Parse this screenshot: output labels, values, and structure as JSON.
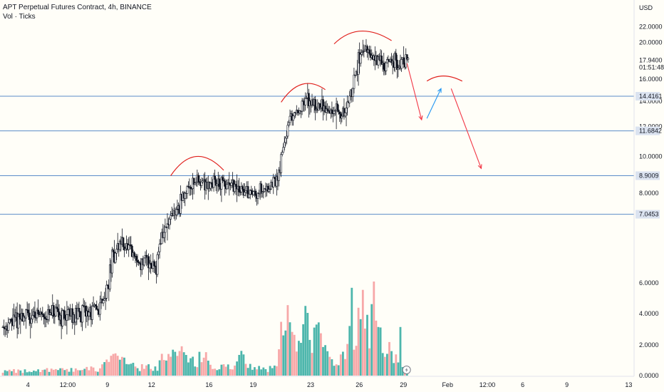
{
  "header": {
    "title": "APT Perpetual Futures Contract, 4h, BINANCE",
    "indicator": "Vol · Ticks"
  },
  "chart_data": {
    "type": "candlestick",
    "currency": "USD",
    "ylim": [
      0,
      23.5
    ],
    "y_ticks": [
      "22.0000",
      "20.0000",
      "16.0000",
      "14.0000",
      "12.0000",
      "10.0000",
      "8.0000",
      "6.0000",
      "4.0000",
      "2.0000",
      "0.0000"
    ],
    "y_tick_values": [
      22,
      20,
      16,
      14,
      12,
      10,
      8,
      6,
      4,
      2,
      0
    ],
    "x_ticks": [
      "4",
      "12:00",
      "9",
      "12",
      "16",
      "19",
      "23",
      "26",
      "29",
      "Feb",
      "12:00",
      "6",
      "9",
      "13"
    ],
    "x_tick_slots": [
      6,
      15,
      24,
      34,
      47,
      57,
      70,
      81,
      91,
      101,
      110,
      118,
      128,
      142
    ],
    "current_price": {
      "value": 17.94,
      "label": "17.9400",
      "countdown": "01:51:48"
    },
    "levels": [
      {
        "value": 14.4161,
        "label": "14.4161"
      },
      {
        "value": 11.6842,
        "label": "11.6842"
      },
      {
        "value": 8.9009,
        "label": "8.9009"
      },
      {
        "value": 7.0453,
        "label": "7.0453"
      }
    ],
    "price_anchors": [
      [
        0,
        3.55
      ],
      [
        4,
        3.75
      ],
      [
        8,
        3.85
      ],
      [
        14,
        3.8
      ],
      [
        20,
        3.9
      ],
      [
        22,
        4.0
      ],
      [
        24,
        4.5
      ],
      [
        25,
        5.4
      ],
      [
        27,
        5.95
      ],
      [
        29,
        5.6
      ],
      [
        31,
        5.25
      ],
      [
        33,
        5.3
      ],
      [
        35,
        5.2
      ],
      [
        36,
        6.1
      ],
      [
        38,
        6.7
      ],
      [
        40,
        7.4
      ],
      [
        42,
        8.3
      ],
      [
        44,
        8.7
      ],
      [
        46,
        8.5
      ],
      [
        48,
        8.6
      ],
      [
        50,
        8.4
      ],
      [
        52,
        8.3
      ],
      [
        55,
        8.1
      ],
      [
        57,
        8.0
      ],
      [
        60,
        8.3
      ],
      [
        62,
        8.5
      ],
      [
        63,
        9.4
      ],
      [
        64,
        11.0
      ],
      [
        65,
        12.2
      ],
      [
        66,
        12.9
      ],
      [
        67,
        13.3
      ],
      [
        68,
        13.5
      ],
      [
        69,
        14.1
      ],
      [
        71,
        13.8
      ],
      [
        73,
        13.4
      ],
      [
        74,
        13.2
      ],
      [
        76,
        13.1
      ],
      [
        77,
        12.8
      ],
      [
        78,
        13.4
      ],
      [
        79,
        14.6
      ],
      [
        80,
        16.3
      ],
      [
        81,
        18.6
      ],
      [
        82,
        18.9
      ],
      [
        84,
        18.1
      ],
      [
        86,
        17.8
      ],
      [
        88,
        17.85
      ],
      [
        90,
        17.6
      ],
      [
        91,
        17.8
      ],
      [
        92,
        17.94
      ]
    ],
    "volume_anchors": [
      [
        0,
        0.3
      ],
      [
        6,
        0.3
      ],
      [
        12,
        0.35
      ],
      [
        18,
        0.4
      ],
      [
        22,
        0.45
      ],
      [
        24,
        0.8
      ],
      [
        25,
        1.3
      ],
      [
        26,
        1.1
      ],
      [
        27,
        0.9
      ],
      [
        29,
        0.6
      ],
      [
        31,
        0.5
      ],
      [
        33,
        0.55
      ],
      [
        35,
        0.4
      ],
      [
        36,
        1.2
      ],
      [
        37,
        1.4
      ],
      [
        38,
        1.0
      ],
      [
        40,
        1.6
      ],
      [
        41,
        1.4
      ],
      [
        42,
        1.1
      ],
      [
        44,
        0.8
      ],
      [
        45,
        1.3
      ],
      [
        46,
        1.5
      ],
      [
        47,
        0.7
      ],
      [
        49,
        0.5
      ],
      [
        51,
        0.55
      ],
      [
        53,
        0.7
      ],
      [
        54,
        1.2
      ],
      [
        55,
        0.9
      ],
      [
        56,
        0.7
      ],
      [
        57,
        0.6
      ],
      [
        58,
        0.45
      ],
      [
        60,
        0.35
      ],
      [
        61,
        0.55
      ],
      [
        62,
        0.8
      ],
      [
        63,
        2.4
      ],
      [
        64,
        2.9
      ],
      [
        65,
        3.3
      ],
      [
        66,
        2.3
      ],
      [
        67,
        1.8
      ],
      [
        68,
        2.7
      ],
      [
        69,
        3.9
      ],
      [
        70,
        2.3
      ],
      [
        71,
        2.8
      ],
      [
        72,
        2.7
      ],
      [
        73,
        1.7
      ],
      [
        74,
        1.2
      ],
      [
        75,
        0.8
      ],
      [
        76,
        0.7
      ],
      [
        77,
        1.4
      ],
      [
        78,
        2.1
      ],
      [
        79,
        2.6
      ],
      [
        80,
        3.4
      ],
      [
        81,
        5.5
      ],
      [
        82,
        3.1
      ],
      [
        83,
        2.4
      ],
      [
        84,
        6.0
      ],
      [
        85,
        3.0
      ],
      [
        86,
        1.8
      ],
      [
        87,
        1.7
      ],
      [
        88,
        1.5
      ],
      [
        89,
        1.0
      ],
      [
        90,
        0.7
      ],
      [
        91,
        0.3
      ],
      [
        92,
        0.3
      ]
    ],
    "volume_highlights": [
      [
        79,
        5.6,
        "up"
      ],
      [
        84,
        6.0,
        "down"
      ],
      [
        69,
        4.0,
        "up"
      ],
      [
        81,
        3.6,
        "up"
      ],
      [
        82,
        3.0,
        "down"
      ],
      [
        65,
        3.4,
        "up"
      ],
      [
        90,
        3.1,
        "up"
      ],
      [
        66,
        2.6,
        "down"
      ],
      [
        72,
        2.7,
        "down"
      ],
      [
        85,
        3.1,
        "up"
      ]
    ],
    "annotations": {
      "arcs": [
        {
          "from": [
            38,
            8.9
          ],
          "peak": [
            43.5,
            10.0
          ],
          "to": [
            50,
            9.2
          ],
          "color": "#e0201c"
        },
        {
          "from": [
            63,
            13.9
          ],
          "peak": [
            67.5,
            15.5
          ],
          "to": [
            73,
            15.0
          ],
          "color": "#e0201c"
        },
        {
          "from": [
            75,
            19.8
          ],
          "peak": [
            80.5,
            21.4
          ],
          "to": [
            88,
            20.2
          ],
          "color": "#e0201c"
        },
        {
          "from": [
            96,
            15.8
          ],
          "peak": [
            99.5,
            16.3
          ],
          "to": [
            104,
            15.8
          ],
          "color": "#e0201c"
        }
      ],
      "arrows": [
        {
          "from": [
            91.5,
            17.6
          ],
          "to": [
            94.8,
            12.5
          ],
          "color": "#f23645"
        },
        {
          "from": [
            96,
            12.6
          ],
          "to": [
            99.2,
            15.1
          ],
          "color": "#2196f3"
        },
        {
          "from": [
            101.5,
            15.1
          ],
          "to": [
            108.3,
            9.3
          ],
          "color": "#f23645"
        }
      ]
    },
    "colors": {
      "up_candle_fill": "#ffffff",
      "candle_stroke": "#131722",
      "volume_up": "#4db6ac",
      "volume_down": "#f7a8a8",
      "level_line": "#5b8cc9",
      "price_tag_bg": "#dbe3f0",
      "axis_border": "#e0e3eb"
    }
  }
}
